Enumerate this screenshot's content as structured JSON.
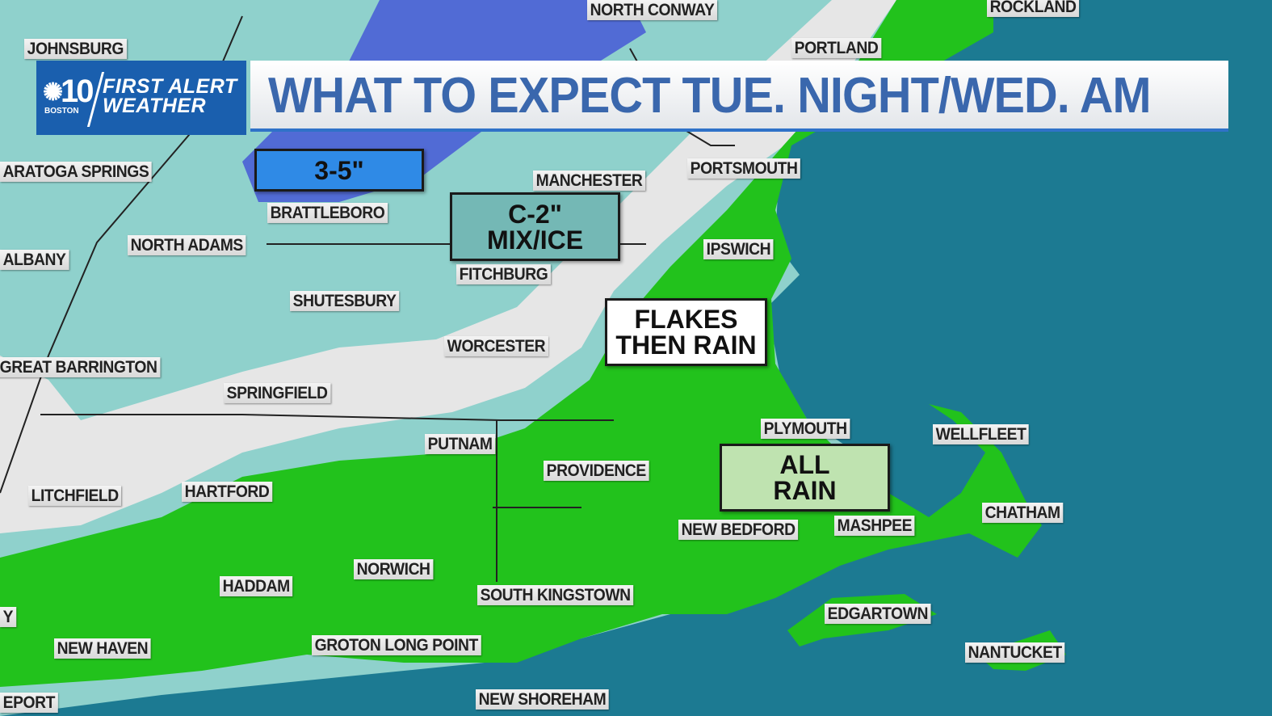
{
  "header": {
    "logo": {
      "channel": "10",
      "station": "BOSTON",
      "line1": "FIRST ALERT",
      "line2": "WEATHER"
    },
    "title": "WHAT TO EXPECT TUE. NIGHT/WED. AM"
  },
  "colors": {
    "ocean": "#1c7a92",
    "snow_light": "#8fd1cc",
    "snow_heavy": "#4a5fd6",
    "mix": "#e6e6e6",
    "rain": "#22c21c",
    "brand": "#1a5fae",
    "title_text": "#3a67ad"
  },
  "zones": [
    {
      "id": "snow-heavy",
      "lines": [
        "3-5\""
      ],
      "color": "#2f8ae6"
    },
    {
      "id": "mix-ice",
      "lines": [
        "C-2\"",
        "MIX/ICE"
      ],
      "color": "#74b8b5"
    },
    {
      "id": "flakes-rain",
      "lines": [
        "FLAKES",
        "THEN RAIN"
      ],
      "color": "#ffffff"
    },
    {
      "id": "all-rain",
      "lines": [
        "ALL",
        "RAIN"
      ],
      "color": "#bfe3b0"
    }
  ],
  "cities": [
    "NORTH CONWAY",
    "ROCKLAND",
    "PORTLAND",
    "JOHNSBURG",
    "ARATOGA SPRINGS",
    "BRATTLEBORO",
    "NORTH ADAMS",
    "ALBANY",
    "MANCHESTER",
    "PORTSMOUTH",
    "IPSWICH",
    "FITCHBURG",
    "SHUTESBURY",
    "WORCESTER",
    "GREAT BARRINGTON",
    "SPRINGFIELD",
    "PUTNAM",
    "PROVIDENCE",
    "PLYMOUTH",
    "WELLFLEET",
    "LITCHFIELD",
    "HARTFORD",
    "CHATHAM",
    "MASHPEE",
    "NEW BEDFORD",
    "NORWICH",
    "HADDAM",
    "SOUTH KINGSTOWN",
    "EDGARTOWN",
    "NEW HAVEN",
    "GROTON LONG POINT",
    "NANTUCKET",
    "EPORT",
    "NEW SHOREHAM",
    "Y"
  ]
}
